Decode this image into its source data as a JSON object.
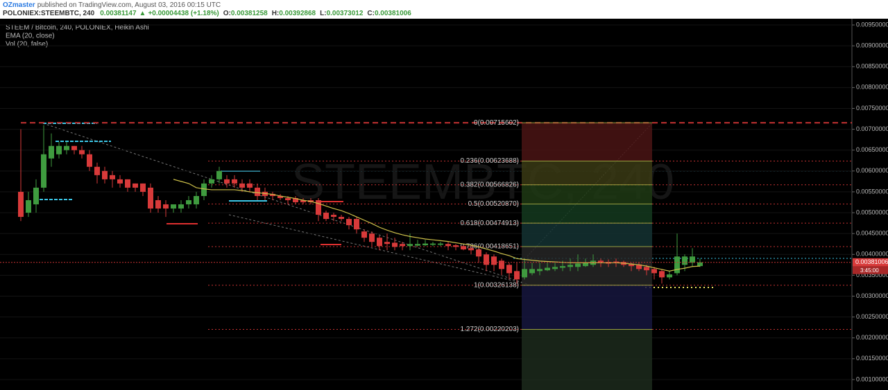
{
  "chart_data": {
    "type": "candlestick",
    "author": "OZmaster",
    "published": "published on TradingView.com, August 03, 2016 00:15 UTC",
    "symbol": "POLONIEX:STEEMBTC, 240",
    "last": 0.00381147,
    "change_arrow": "▲",
    "change": "+0.00004438 (+1.18%)",
    "ohlc": [
      {
        "label": "O:",
        "value": 0.00381258
      },
      {
        "label": "H:",
        "value": 0.00392868
      },
      {
        "label": "L:",
        "value": 0.00373012
      },
      {
        "label": "C:",
        "value": 0.00381006
      }
    ],
    "title": "STEEM / Bitcoin, 240, POLONIEX, Heikin Ashi",
    "indicators": [
      "EMA (20, close)",
      "Vol (20, false)"
    ],
    "watermark": "STEEMBTC, 240",
    "up_color": "#3f9b3f",
    "down_color": "#d83a3a",
    "candles": {
      "open": [
        0.0055,
        0.005,
        0.0052,
        0.0056,
        0.0063,
        0.0064,
        0.0065,
        0.0066,
        0.0065,
        0.0064,
        0.0061,
        0.006,
        0.0059,
        0.0058,
        0.0058,
        0.0057,
        0.0057,
        0.0056,
        0.0053,
        0.0052,
        0.0051,
        0.0051,
        0.0052,
        0.0052,
        0.0054,
        0.0057,
        0.0058,
        0.0058,
        0.0058,
        0.0057,
        0.0057,
        0.0056,
        0.0055,
        0.00545,
        0.0054,
        0.00535,
        0.00535,
        0.0053,
        0.0053,
        0.0053,
        0.005,
        0.00495,
        0.0049,
        0.00485,
        0.00485,
        0.00455,
        0.0045,
        0.0044,
        0.0043,
        0.00428,
        0.00425,
        0.0042,
        0.00421,
        0.00422,
        0.00423,
        0.00423,
        0.00425,
        0.00422,
        0.0042,
        0.00415,
        0.00412,
        0.004,
        0.00395,
        0.00385,
        0.00375,
        0.0036,
        0.00345,
        0.00355,
        0.0036,
        0.00362,
        0.00365,
        0.00368,
        0.0037,
        0.0037,
        0.00372,
        0.00375,
        0.00385,
        0.00382,
        0.00383,
        0.00382,
        0.00378,
        0.00376,
        0.0037,
        0.00365,
        0.0036,
        0.00345,
        0.00355,
        0.00375,
        0.0038,
        0.00372
      ],
      "high": [
        0.007,
        0.0055,
        0.0058,
        0.0071,
        0.0069,
        0.0067,
        0.0067,
        0.0066,
        0.0066,
        0.0065,
        0.0062,
        0.0061,
        0.006,
        0.0059,
        0.0058,
        0.0057,
        0.0057,
        0.0057,
        0.0054,
        0.0053,
        0.0052,
        0.0053,
        0.0054,
        0.0055,
        0.0058,
        0.0059,
        0.0061,
        0.0059,
        0.0059,
        0.0058,
        0.0058,
        0.0057,
        0.0056,
        0.0055,
        0.00545,
        0.0054,
        0.0054,
        0.00535,
        0.00535,
        0.00535,
        0.00505,
        0.005,
        0.00495,
        0.0049,
        0.0049,
        0.0046,
        0.00455,
        0.00445,
        0.0045,
        0.0044,
        0.0043,
        0.0045,
        0.00435,
        0.00435,
        0.0043,
        0.0043,
        0.0043,
        0.00425,
        0.00422,
        0.0042,
        0.00415,
        0.00405,
        0.004,
        0.0039,
        0.0038,
        0.0038,
        0.0039,
        0.0038,
        0.0038,
        0.0038,
        0.0038,
        0.00385,
        0.0039,
        0.004,
        0.0039,
        0.004,
        0.0039,
        0.00388,
        0.0039,
        0.00385,
        0.0038,
        0.0038,
        0.00375,
        0.0037,
        0.00365,
        0.0036,
        0.0045,
        0.004,
        0.00415,
        0.0039
      ],
      "low": [
        0.0048,
        0.0049,
        0.005,
        0.0055,
        0.0061,
        0.0063,
        0.0064,
        0.0064,
        0.0063,
        0.006,
        0.0057,
        0.0057,
        0.0056,
        0.0056,
        0.0055,
        0.0055,
        0.0054,
        0.005,
        0.005,
        0.0049,
        0.005,
        0.005,
        0.0051,
        0.0051,
        0.0053,
        0.0056,
        0.0057,
        0.0056,
        0.0056,
        0.0055,
        0.0055,
        0.0053,
        0.0053,
        0.0053,
        0.0053,
        0.0052,
        0.0052,
        0.0052,
        0.0052,
        0.0048,
        0.0048,
        0.0048,
        0.0048,
        0.0046,
        0.0045,
        0.0043,
        0.0042,
        0.0041,
        0.0041,
        0.0041,
        0.0041,
        0.0041,
        0.0042,
        0.0042,
        0.0042,
        0.0042,
        0.0041,
        0.0041,
        0.0041,
        0.004,
        0.0038,
        0.0036,
        0.0036,
        0.0035,
        0.0034,
        0.0033,
        0.0034,
        0.0035,
        0.0035,
        0.0036,
        0.0036,
        0.0036,
        0.0036,
        0.0036,
        0.0037,
        0.0037,
        0.0037,
        0.0037,
        0.0037,
        0.0037,
        0.0036,
        0.0036,
        0.0035,
        0.0034,
        0.0033,
        0.0034,
        0.0035,
        0.0036,
        0.0037,
        0.0037
      ],
      "close": [
        0.0049,
        0.0053,
        0.0056,
        0.0064,
        0.0066,
        0.0066,
        0.0066,
        0.0065,
        0.0064,
        0.0061,
        0.0059,
        0.0058,
        0.0058,
        0.0057,
        0.0056,
        0.0056,
        0.0055,
        0.0051,
        0.0051,
        0.0051,
        0.0052,
        0.0052,
        0.0053,
        0.0054,
        0.0057,
        0.0058,
        0.006,
        0.0057,
        0.0057,
        0.0056,
        0.0056,
        0.0054,
        0.0054,
        0.0054,
        0.00535,
        0.0053,
        0.00525,
        0.00525,
        0.00525,
        0.00495,
        0.00485,
        0.0049,
        0.00485,
        0.0047,
        0.0046,
        0.0044,
        0.0043,
        0.0042,
        0.00425,
        0.00418,
        0.0042,
        0.00425,
        0.00425,
        0.00426,
        0.00426,
        0.00426,
        0.0042,
        0.00418,
        0.00412,
        0.0041,
        0.00395,
        0.00375,
        0.00375,
        0.00365,
        0.00355,
        0.0034,
        0.00365,
        0.00365,
        0.00365,
        0.00368,
        0.0037,
        0.00372,
        0.00375,
        0.00378,
        0.0038,
        0.00385,
        0.0038,
        0.00378,
        0.00379,
        0.00375,
        0.00372,
        0.00365,
        0.00362,
        0.00355,
        0.00345,
        0.00352,
        0.00395,
        0.00395,
        0.00395,
        0.00381
      ]
    },
    "ema": {
      "color": "#cfc24a",
      "values": [
        null,
        null,
        null,
        null,
        null,
        null,
        null,
        null,
        null,
        null,
        null,
        null,
        null,
        null,
        null,
        null,
        null,
        null,
        null,
        null,
        0.0058,
        0.00575,
        0.0057,
        0.0056,
        0.00557,
        0.00555,
        0.00555,
        0.00555,
        0.00555,
        0.00553,
        0.0055,
        0.00548,
        0.00546,
        0.00544,
        0.0054,
        0.00537,
        0.00534,
        0.0053,
        0.00527,
        0.00522,
        0.00516,
        0.0051,
        0.00505,
        0.00498,
        0.0049,
        0.00482,
        0.00474,
        0.00465,
        0.00458,
        0.00452,
        0.00447,
        0.00443,
        0.0044,
        0.00437,
        0.00435,
        0.00433,
        0.00431,
        0.00428,
        0.00425,
        0.00422,
        0.00418,
        0.00413,
        0.00408,
        0.00402,
        0.00397,
        0.0039,
        0.00388,
        0.00386,
        0.00384,
        0.00383,
        0.00382,
        0.00381,
        0.0038,
        0.0038,
        0.0038,
        0.0038,
        0.0038,
        0.0038,
        0.0038,
        0.00379,
        0.00377,
        0.00375,
        0.00372,
        0.00368,
        0.00364,
        0.0036,
        0.00364,
        0.00367,
        0.00371,
        0.00372
      ]
    },
    "fib_levels": [
      {
        "value": 0.00715602,
        "label": "0(0.00715602)",
        "color": "#4a1414"
      },
      {
        "value": 0.00623688,
        "label": "0.236(0.00623688)",
        "color": "#3a3a14"
      },
      {
        "value": 0.00566826,
        "label": "0.382(0.00566826)",
        "color": "#1e3a14"
      },
      {
        "value": 0.0052087,
        "label": "0.5(0.00520870)",
        "color": "#143a1e"
      },
      {
        "value": 0.00474913,
        "label": "0.618(0.00474913)",
        "color": "#143232"
      },
      {
        "value": 0.00418651,
        "label": "0.786(0.00418651)",
        "color": "#262626"
      },
      {
        "value": 0.00326138,
        "label": "1(0.00326138)",
        "color": "#16163e"
      },
      {
        "value": 0.00220203,
        "label": "1.272(0.00220203)",
        "color": "#1c2a1c"
      }
    ],
    "price_label": 0.00381006,
    "countdown": "3:45:00",
    "ylim": [
      0.00075,
      0.00965
    ],
    "yticks": [
      {
        "value": 0.001,
        "label": "0.00100000"
      },
      {
        "value": 0.0015,
        "label": "0.00150000"
      },
      {
        "value": 0.002,
        "label": "0.00200000"
      },
      {
        "value": 0.0025,
        "label": "0.00250000"
      },
      {
        "value": 0.003,
        "label": "0.00300000"
      },
      {
        "value": 0.0035,
        "label": "0.00350000"
      },
      {
        "value": 0.004,
        "label": "0.00400000"
      },
      {
        "value": 0.0045,
        "label": "0.00450000"
      },
      {
        "value": 0.005,
        "label": "0.00500000"
      },
      {
        "value": 0.0055,
        "label": "0.00550000"
      },
      {
        "value": 0.006,
        "label": "0.00600000"
      },
      {
        "value": 0.0065,
        "label": "0.00650000"
      },
      {
        "value": 0.007,
        "label": "0.00700000"
      },
      {
        "value": 0.0075,
        "label": "0.00750000"
      },
      {
        "value": 0.008,
        "label": "0.00800000"
      },
      {
        "value": 0.0085,
        "label": "0.00850000"
      },
      {
        "value": 0.009,
        "label": "0.00900000"
      },
      {
        "value": 0.0095,
        "label": "0.00950000"
      }
    ],
    "grid": true
  }
}
